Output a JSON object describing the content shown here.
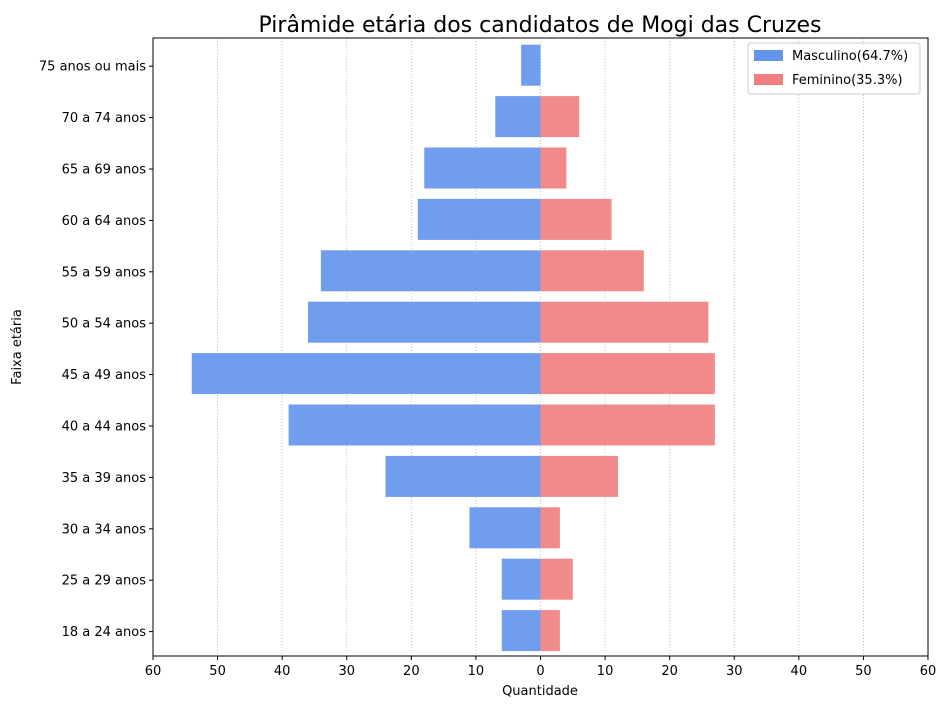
{
  "chart_data": {
    "type": "bar",
    "orientation": "horizontal-pyramid",
    "title": "Pirâmide etária dos candidatos de Mogi das Cruzes",
    "xlabel": "Quantidade",
    "ylabel": "Faixa etária",
    "categories": [
      "75 anos ou mais",
      "70 a 74 anos",
      "65 a 69 anos",
      "60 a 64 anos",
      "55 a 59 anos",
      "50 a 54 anos",
      "45 a 49 anos",
      "40 a 44 anos",
      "35 a 39 anos",
      "30 a 34 anos",
      "25 a 29 anos",
      "18 a 24 anos"
    ],
    "series": [
      {
        "name": "Masculino(64.7%)",
        "side": "left",
        "color": "#6495ED",
        "values": [
          3,
          7,
          18,
          19,
          34,
          36,
          54,
          39,
          24,
          11,
          6,
          6
        ]
      },
      {
        "name": "Feminino(35.3%)",
        "side": "right",
        "color": "#F08080",
        "values": [
          0,
          6,
          4,
          11,
          16,
          26,
          27,
          27,
          12,
          3,
          5,
          3
        ]
      }
    ],
    "xlim": [
      -60,
      60
    ],
    "xticks": [
      -60,
      -50,
      -40,
      -30,
      -20,
      -10,
      0,
      10,
      20,
      30,
      40,
      50,
      60
    ],
    "xtick_labels": [
      "60",
      "50",
      "40",
      "30",
      "20",
      "10",
      "0",
      "10",
      "20",
      "30",
      "40",
      "50",
      "60"
    ],
    "grid": "x-dotted",
    "legend_position": "top-right"
  }
}
